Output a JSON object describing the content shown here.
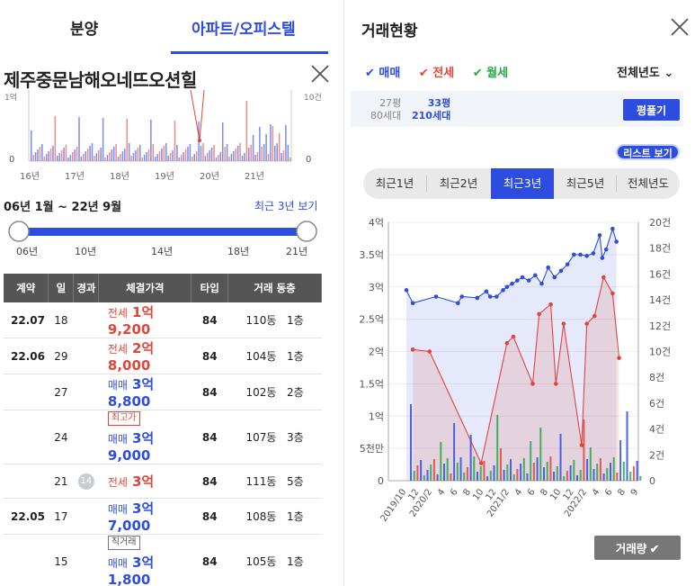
{
  "tabs": [
    "분양",
    "아파트/오피스텔"
  ],
  "apartment_name": "제주중문남해오네뜨오션힐",
  "mini_chart": {
    "x_ticks": [
      "16년",
      "17년",
      "18년",
      "19년",
      "20년",
      "21년"
    ],
    "y_left_bottom": "0",
    "y_right_bottom": "0",
    "y_left_top": "1억",
    "y_right_top": "10건"
  },
  "period_label": "06년 1월 ~ 22년 9월",
  "recent3_link": "최근 3년 보기",
  "range_ticks": [
    "06년",
    "10년",
    "14년",
    "18년",
    "21년"
  ],
  "table": {
    "headers": [
      "계약",
      "일",
      "경과",
      "체결가격",
      "타입",
      "거래 동층"
    ],
    "rows": [
      {
        "date": "22.07",
        "day": "18",
        "flag": "",
        "badge": "",
        "type": "전세",
        "price": "1억 9,200",
        "area": "84",
        "dong": "110동",
        "floor": "1층"
      },
      {
        "date": "22.06",
        "day": "29",
        "flag": "",
        "badge": "",
        "type": "전세",
        "price": "2억 8,000",
        "area": "84",
        "dong": "104동",
        "floor": "1층"
      },
      {
        "date": "",
        "day": "27",
        "flag": "",
        "badge": "",
        "type": "매매",
        "price": "3억 8,800",
        "area": "84",
        "dong": "102동",
        "floor": "2층"
      },
      {
        "date": "",
        "day": "24",
        "flag": "",
        "badge": "최고가",
        "type": "매매",
        "price": "3억 9,000",
        "area": "84",
        "dong": "107동",
        "floor": "3층"
      },
      {
        "date": "",
        "day": "21",
        "flag": "14",
        "badge": "",
        "type": "전세",
        "price": "3억",
        "area": "84",
        "dong": "111동",
        "floor": "5층"
      },
      {
        "date": "22.05",
        "day": "17",
        "flag": "",
        "badge": "",
        "type": "매매",
        "price": "3억 7,000",
        "area": "84",
        "dong": "108동",
        "floor": "1층"
      },
      {
        "date": "",
        "day": "15",
        "flag": "",
        "badge": "직거래",
        "type": "매매",
        "price": "3억 1,800",
        "area": "84",
        "dong": "105동",
        "floor": "1층"
      }
    ]
  },
  "right": {
    "title": "거래현황",
    "filters": {
      "maemae": "매매",
      "jeonse": "전세",
      "wolse": "월세"
    },
    "year_select": "전체년도",
    "size_row": {
      "pyeong_a": "27평",
      "sede_a": "80세대",
      "pyeong_b": "33평",
      "sede_b": "210세대"
    },
    "pyeong_button": "평풀기",
    "list_button": "리스트 보기",
    "period_tabs": [
      "최근1년",
      "최근2년",
      "최근3년",
      "최근5년",
      "전체년도"
    ],
    "active_period": 2,
    "volume_button": "거래량 ✔"
  },
  "chart_data": {
    "type": "line",
    "y_left_labels": [
      "0",
      "5천만",
      "1억",
      "1.5억",
      "2억",
      "2.5억",
      "3억",
      "3.5억",
      "4억"
    ],
    "y_right_labels": [
      "0",
      "2건",
      "4건",
      "6건",
      "8건",
      "10건",
      "12건",
      "14건",
      "16건",
      "18건",
      "20건"
    ],
    "ylim_price_eok": [
      0,
      4
    ],
    "ylim_count": [
      0,
      20
    ],
    "x_labels": [
      "2019/10",
      "12",
      "2020/2",
      "4",
      "6",
      "8",
      "10",
      "12",
      "2021/2",
      "4",
      "6",
      "8",
      "10",
      "12",
      "2022/2",
      "4",
      "6",
      "8",
      "9"
    ],
    "series": [
      {
        "name": "매매",
        "color": "#2d4de0",
        "x": [
          0,
          0.5,
          2.3,
          4,
          4.3,
          5.5,
          6.2,
          6.5,
          7,
          7.5,
          7.8,
          8.2,
          8.6,
          9,
          9.5,
          10,
          10.5,
          11,
          11.5,
          12,
          12.5,
          13,
          13.5,
          14,
          14.5,
          15,
          15.2,
          15.5,
          16,
          16.3
        ],
        "values": [
          2.95,
          2.75,
          2.85,
          2.75,
          2.85,
          2.83,
          2.93,
          2.85,
          2.85,
          2.95,
          3.0,
          3.05,
          3.1,
          3.15,
          3.1,
          3.18,
          3.05,
          3.3,
          3.15,
          3.25,
          3.35,
          3.5,
          3.5,
          3.48,
          3.52,
          3.8,
          3.45,
          3.58,
          3.9,
          3.7
        ]
      },
      {
        "name": "전세",
        "color": "#e0453a",
        "x": [
          0.5,
          1.8,
          5.8,
          7.8,
          8.3,
          9.8,
          10.3,
          11.2,
          11.6,
          12.2,
          13.6,
          14,
          14.6,
          15.3,
          16,
          16.5
        ],
        "values": [
          2.03,
          2.0,
          0.27,
          2.13,
          2.23,
          1.5,
          2.58,
          2.73,
          1.5,
          2.43,
          0.55,
          2.43,
          2.55,
          3.15,
          2.9,
          1.9
        ]
      }
    ]
  }
}
